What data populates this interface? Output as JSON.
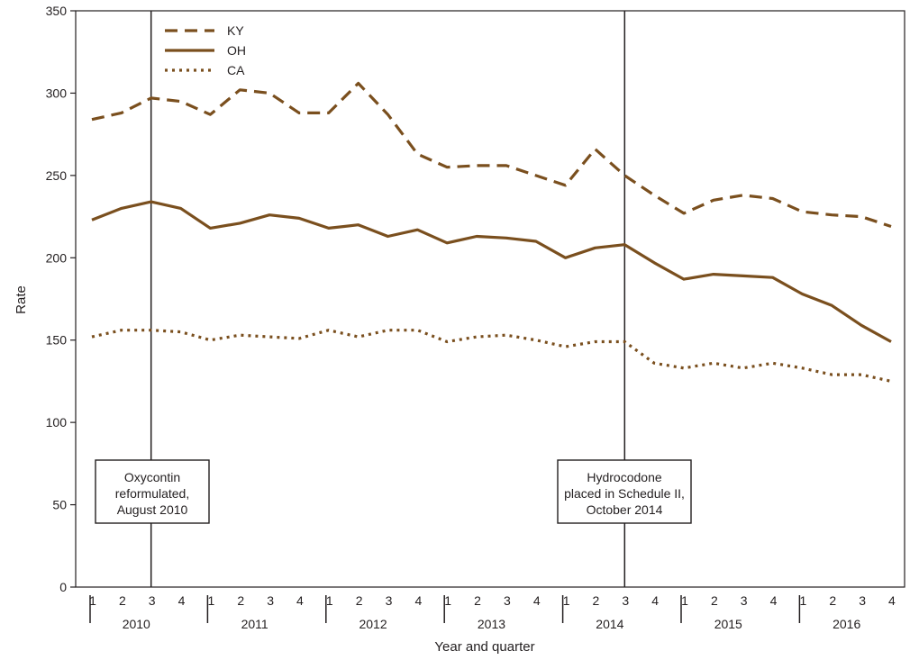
{
  "chart_data": {
    "type": "line",
    "title": "",
    "xlabel": "Year and quarter",
    "ylabel": "Rate",
    "ylim": [
      0,
      350
    ],
    "yticks": [
      0,
      50,
      100,
      150,
      200,
      250,
      300,
      350
    ],
    "grid": false,
    "legend_position": "top-left",
    "years": [
      "2010",
      "2011",
      "2012",
      "2013",
      "2014",
      "2015",
      "2016"
    ],
    "quarters": [
      "1",
      "2",
      "3",
      "4"
    ],
    "colors": {
      "line": "#7a4f1e",
      "axis": "#231f20"
    },
    "series": [
      {
        "name": "KY",
        "style": "dashed",
        "values": [
          284,
          288,
          297,
          295,
          287,
          302,
          300,
          288,
          288,
          306,
          287,
          263,
          255,
          256,
          256,
          250,
          244,
          266,
          250,
          238,
          227,
          235,
          238,
          236,
          228,
          226,
          225,
          219
        ]
      },
      {
        "name": "OH",
        "style": "solid",
        "values": [
          223,
          230,
          234,
          230,
          218,
          221,
          226,
          224,
          218,
          220,
          213,
          217,
          209,
          213,
          212,
          210,
          200,
          206,
          208,
          197,
          187,
          190,
          189,
          188,
          178,
          171,
          159,
          149
        ]
      },
      {
        "name": "CA",
        "style": "dotted",
        "values": [
          152,
          156,
          156,
          155,
          150,
          153,
          152,
          151,
          156,
          152,
          156,
          156,
          149,
          152,
          153,
          150,
          146,
          149,
          149,
          136,
          133,
          136,
          133,
          136,
          133,
          129,
          129,
          125
        ]
      }
    ],
    "annotations": [
      {
        "name": "oxycontin",
        "index": 2,
        "lines": [
          "Oxycontin",
          "reformulated,",
          "August 2010"
        ]
      },
      {
        "name": "hydrocodone",
        "index": 18,
        "lines": [
          "Hydrocodone",
          "placed in Schedule II,",
          "October 2014"
        ]
      }
    ]
  }
}
